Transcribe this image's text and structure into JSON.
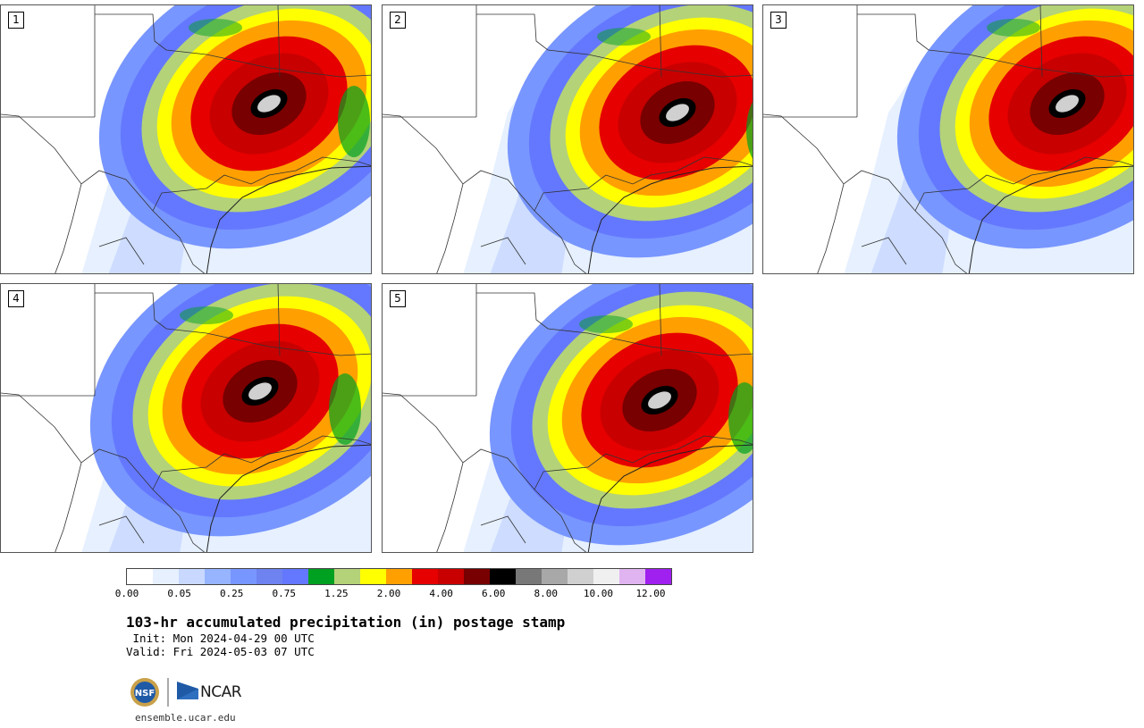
{
  "panels": [
    {
      "label": "1",
      "zone": {
        "cx": 300,
        "cy": 110
      }
    },
    {
      "label": "2",
      "zone": {
        "cx": 330,
        "cy": 120
      }
    },
    {
      "label": "3",
      "zone": {
        "cx": 340,
        "cy": 110
      }
    },
    {
      "label": "4",
      "zone": {
        "cx": 290,
        "cy": 120
      }
    },
    {
      "label": "5",
      "zone": {
        "cx": 310,
        "cy": 130
      }
    }
  ],
  "colorbar": {
    "colors": [
      "#ffffff",
      "#e6f0ff",
      "#c8d8ff",
      "#96b4ff",
      "#7896ff",
      "#6e82f0",
      "#6478ff",
      "#00a020",
      "#b4d278",
      "#ffff00",
      "#ffa000",
      "#e60000",
      "#c80000",
      "#780000",
      "#000000",
      "#787878",
      "#a8a8a8",
      "#d0d0d0",
      "#f0f0f0",
      "#e0b4f0",
      "#a020f0"
    ],
    "ticks": [
      "0.00",
      "0.05",
      "0.25",
      "0.75",
      "1.25",
      "2.00",
      "4.00",
      "6.00",
      "8.00",
      "10.00",
      "12.00"
    ]
  },
  "title": "103-hr accumulated precipitation (in) postage stamp",
  "init_line": " Init: Mon 2024-04-29 00 UTC",
  "valid_line": "Valid: Fri 2024-05-03 07 UTC",
  "logos": {
    "nsf": "NSF",
    "ncar": "NCAR"
  },
  "site": "ensemble.ucar.edu"
}
